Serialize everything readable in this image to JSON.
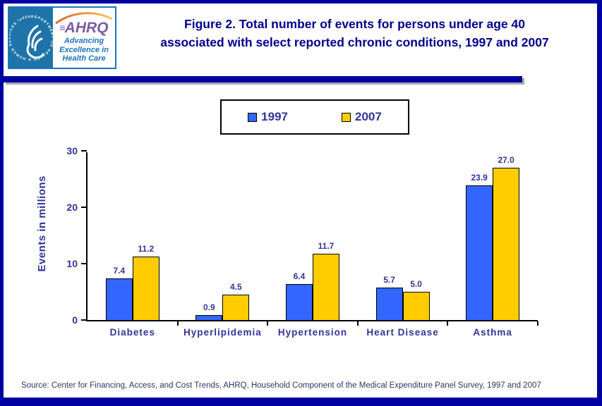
{
  "colors": {
    "page_border": "#0000A0",
    "title_navy": "#00008B",
    "chart_text_navy": "#333399",
    "bar_1997": "#3366FF",
    "bar_2007": "#FFCC00",
    "hhs_blue": "#1E74A8",
    "ahrq_purple": "#7A5CA5"
  },
  "header": {
    "title_line1": "Figure 2. Total number of events for persons under age 40",
    "title_line2": "associated with select reported chronic conditions, 1997 and 2007",
    "logo": {
      "ahrq": "AHRQ",
      "tagline": "Advancing Excellence in Health Care",
      "seal_text": "DEPARTMENT OF HEALTH & HUMAN SERVICES · USA"
    }
  },
  "chart_data": {
    "type": "bar",
    "title": "Figure 2. Total number of events for persons under age 40 associated with select reported chronic conditions, 1997 and 2007",
    "categories": [
      "Diabetes",
      "Hyperlipidemia",
      "Hypertension",
      "Heart Disease",
      "Asthma"
    ],
    "series": [
      {
        "name": "1997",
        "color": "#3366FF",
        "values": [
          7.4,
          0.9,
          6.4,
          5.7,
          23.9
        ]
      },
      {
        "name": "2007",
        "color": "#FFCC00",
        "values": [
          11.2,
          4.5,
          11.7,
          5.0,
          27.0
        ]
      }
    ],
    "xlabel": "",
    "ylabel": "Events in millions",
    "ylim": [
      0,
      30
    ],
    "yticks": [
      0,
      10,
      20,
      30
    ],
    "grid": false,
    "legend_position": "top-center",
    "value_label_decimals": 1
  },
  "source": "Source: Center for Financing, Access, and Cost Trends, AHRQ, Household Component of the Medical Expenditure Panel Survey, 1997 and 2007"
}
